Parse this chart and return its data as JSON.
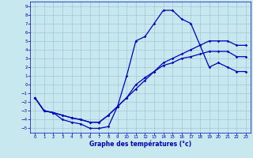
{
  "xlabel": "Graphe des températures (°c)",
  "xlim": [
    -0.5,
    23.5
  ],
  "ylim": [
    -5.5,
    9.5
  ],
  "xticks": [
    0,
    1,
    2,
    3,
    4,
    5,
    6,
    7,
    8,
    9,
    10,
    11,
    12,
    13,
    14,
    15,
    16,
    17,
    18,
    19,
    20,
    21,
    22,
    23
  ],
  "yticks": [
    -5,
    -4,
    -3,
    -2,
    -1,
    0,
    1,
    2,
    3,
    4,
    5,
    6,
    7,
    8,
    9
  ],
  "background_color": "#c8e8f0",
  "grid_color": "#a0c8d8",
  "line_color": "#0000bb",
  "curve1_x": [
    0,
    1,
    2,
    3,
    4,
    5,
    6,
    7,
    8,
    9,
    10,
    11,
    12,
    13,
    14,
    15,
    16,
    17,
    18,
    19,
    20,
    21,
    22,
    23
  ],
  "curve1_y": [
    -1.5,
    -3,
    -3.2,
    -4,
    -4.3,
    -4.5,
    -5,
    -5,
    -4.8,
    -2.5,
    1,
    5,
    5.5,
    7,
    8.5,
    8.5,
    7.5,
    7,
    4.5,
    2,
    2.5,
    2,
    1.5,
    1.5
  ],
  "curve2_x": [
    0,
    1,
    2,
    3,
    4,
    5,
    6,
    7,
    8,
    9,
    10,
    11,
    12,
    13,
    14,
    15,
    16,
    17,
    18,
    19,
    20,
    21,
    22,
    23
  ],
  "curve2_y": [
    -1.5,
    -3,
    -3.2,
    -3.5,
    -3.8,
    -4,
    -4.3,
    -4.3,
    -3.5,
    -2.5,
    -1.5,
    -0.5,
    0.5,
    1.5,
    2.5,
    3,
    3.5,
    4,
    4.5,
    5,
    5,
    5,
    4.5,
    4.5
  ],
  "curve3_x": [
    0,
    1,
    2,
    3,
    4,
    5,
    6,
    7,
    8,
    9,
    10,
    11,
    12,
    13,
    14,
    15,
    16,
    17,
    18,
    19,
    20,
    21,
    22,
    23
  ],
  "curve3_y": [
    -1.5,
    -3,
    -3.2,
    -3.5,
    -3.8,
    -4,
    -4.3,
    -4.3,
    -3.5,
    -2.5,
    -1.5,
    0,
    0.8,
    1.5,
    2.2,
    2.5,
    3,
    3.2,
    3.5,
    3.8,
    3.8,
    3.8,
    3.2,
    3.2
  ]
}
